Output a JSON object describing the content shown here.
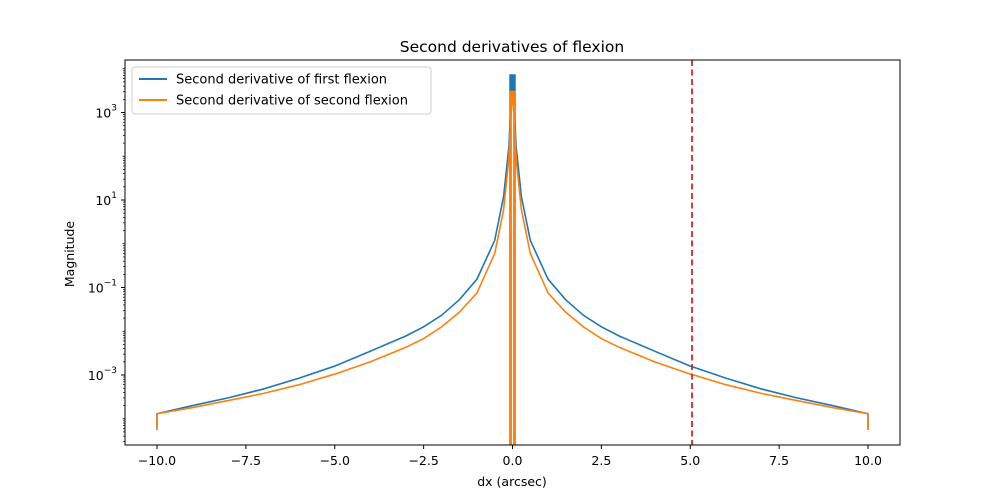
{
  "chart_data": {
    "type": "line",
    "title": "Second derivatives of flexion",
    "xlabel": "dx (arcsec)",
    "ylabel": "Magnitude",
    "xlim": [
      -10.9,
      10.9
    ],
    "ylim_log10": [
      -4.6,
      4.2
    ],
    "yscale": "log",
    "xticks": [
      -10.0,
      -7.5,
      -5.0,
      -2.5,
      0.0,
      2.5,
      5.0,
      7.5,
      10.0
    ],
    "xtick_labels": [
      "−10.0",
      "−7.5",
      "−5.0",
      "−2.5",
      "0.0",
      "2.5",
      "5.0",
      "7.5",
      "10.0"
    ],
    "yticks_log10": [
      -3,
      -1,
      1,
      3
    ],
    "ytick_labels": [
      {
        "base": "10",
        "exp": "−3"
      },
      {
        "base": "10",
        "exp": "−1"
      },
      {
        "base": "10",
        "exp": "1"
      },
      {
        "base": "10",
        "exp": "3"
      }
    ],
    "grid": false,
    "legend_position": "upper-left",
    "series": [
      {
        "name": "Second derivative of first flexion",
        "color": "#1f77b4",
        "x": [
          -10.0,
          -9.0,
          -8.0,
          -7.0,
          -6.0,
          -5.0,
          -4.0,
          -3.0,
          -2.5,
          -2.0,
          -1.5,
          -1.0,
          -0.5,
          -0.25,
          -0.1,
          -0.05,
          0.0,
          0.05,
          0.1,
          0.25,
          0.5,
          1.0,
          1.5,
          2.0,
          2.5,
          3.0,
          4.0,
          5.0,
          5.1,
          6.0,
          7.0,
          8.0,
          9.0,
          10.0
        ],
        "y": [
          0.00013,
          0.0002,
          0.0003,
          0.00048,
          0.00085,
          0.0016,
          0.0035,
          0.0078,
          0.0126,
          0.023,
          0.052,
          0.155,
          1.2,
          12,
          170,
          1300,
          7000,
          1300,
          170,
          12,
          1.2,
          0.155,
          0.052,
          0.023,
          0.0126,
          0.0078,
          0.0035,
          0.0016,
          0.0015,
          0.00085,
          0.00048,
          0.0003,
          0.0002,
          0.00013
        ]
      },
      {
        "name": "Second derivative of second flexion",
        "color": "#ff7f0e",
        "x": [
          -10.0,
          -9.0,
          -8.0,
          -7.0,
          -6.0,
          -5.0,
          -4.0,
          -3.0,
          -2.5,
          -2.0,
          -1.5,
          -1.0,
          -0.5,
          -0.25,
          -0.1,
          -0.05,
          0.0,
          0.05,
          0.1,
          0.25,
          0.5,
          1.0,
          1.5,
          2.0,
          2.5,
          3.0,
          4.0,
          5.0,
          5.1,
          6.0,
          7.0,
          8.0,
          9.0,
          10.0
        ],
        "y": [
          0.00013,
          0.00018,
          0.00026,
          0.00038,
          0.0006,
          0.00105,
          0.002,
          0.0043,
          0.0068,
          0.0125,
          0.027,
          0.075,
          0.6,
          6,
          90,
          700,
          3000,
          700,
          90,
          6,
          0.6,
          0.075,
          0.027,
          0.0125,
          0.0068,
          0.0043,
          0.002,
          0.00105,
          0.001,
          0.0006,
          0.00038,
          0.00026,
          0.00018,
          0.00013
        ]
      }
    ],
    "vline": {
      "x": 5.05,
      "color": "#d62728",
      "style": "dashed"
    }
  }
}
